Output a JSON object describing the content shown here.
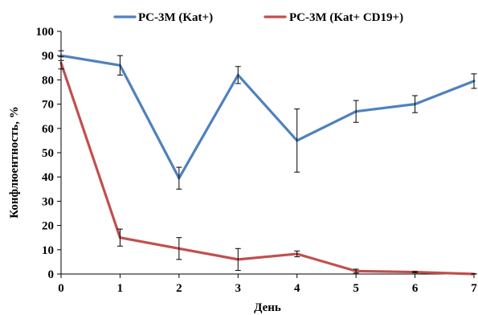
{
  "chart_data": {
    "type": "line",
    "title": "",
    "xlabel": "День",
    "ylabel": "Конфлюентность, %",
    "x": [
      0,
      1,
      2,
      3,
      4,
      5,
      6,
      7
    ],
    "xlim": [
      0,
      7
    ],
    "ylim": [
      0,
      100
    ],
    "yticks": [
      0,
      10,
      20,
      30,
      40,
      50,
      60,
      70,
      80,
      90,
      100
    ],
    "grid": false,
    "legend_position": "top",
    "series": [
      {
        "name": "PC-3M (Kat+)",
        "color": "#4f81bd",
        "values": [
          90,
          86,
          39.5,
          82,
          55,
          67,
          70,
          79.5
        ],
        "error": [
          2,
          4,
          4.5,
          3.5,
          13,
          4.5,
          3.5,
          3
        ]
      },
      {
        "name": "PC-3M (Kat+ CD19+)",
        "color": "#c0504d",
        "values": [
          87,
          15,
          10.5,
          6,
          8.3,
          1.2,
          0.8,
          0
        ],
        "error": [
          2.5,
          3.5,
          4.5,
          4.5,
          1.2,
          0.8,
          0.3,
          0.1
        ]
      }
    ]
  }
}
